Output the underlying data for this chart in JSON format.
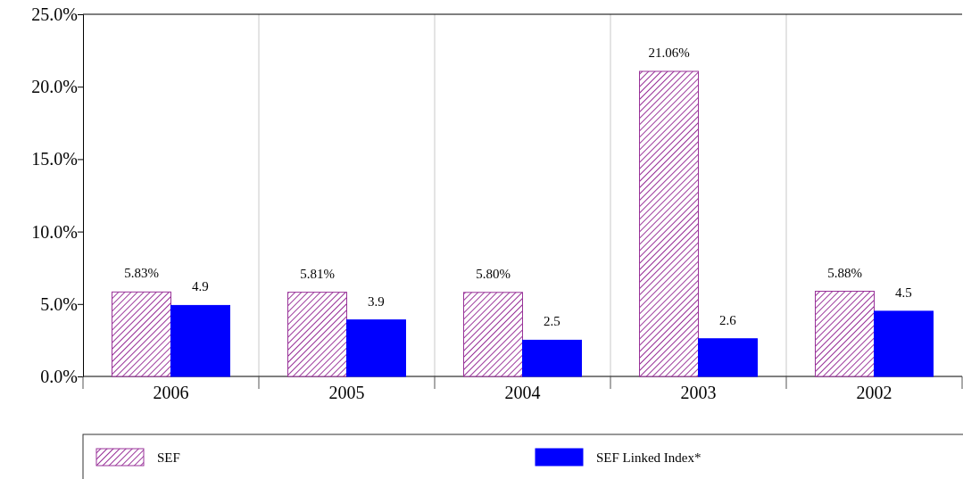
{
  "chart_data": {
    "type": "bar",
    "categories": [
      "2006",
      "2005",
      "2004",
      "2003",
      "2002"
    ],
    "series": [
      {
        "name": "SEF",
        "color": "#993399",
        "values": [
          5.83,
          5.81,
          5.8,
          21.06,
          5.88
        ],
        "value_labels": [
          "5.83%",
          "5.81%",
          "5.80%",
          "21.06%",
          "5.88%"
        ]
      },
      {
        "name": "SEF Linked Index*",
        "color": "#0000ff",
        "values": [
          4.9,
          3.9,
          2.5,
          2.6,
          4.5
        ],
        "value_labels": [
          "4.9",
          "3.9",
          "2.5",
          "2.6",
          "4.5"
        ]
      }
    ],
    "ylim": [
      0,
      25
    ],
    "yticks": [
      {
        "value": 0,
        "label": "0.0%"
      },
      {
        "value": 5,
        "label": "5.0%"
      },
      {
        "value": 10,
        "label": "10.0%"
      },
      {
        "value": 15,
        "label": "15.0%"
      },
      {
        "value": 20,
        "label": "20.0%"
      },
      {
        "value": 25,
        "label": "25.0%"
      }
    ],
    "grid": "x",
    "legend": "bottom"
  }
}
